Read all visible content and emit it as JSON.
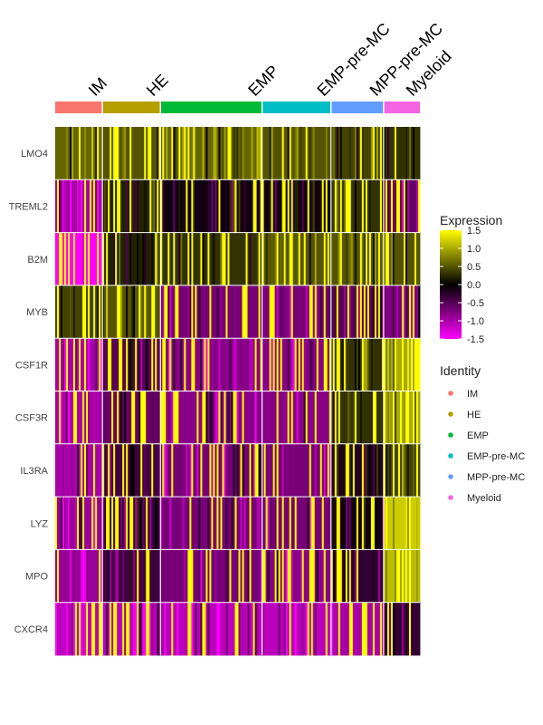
{
  "chart_data": {
    "type": "heatmap",
    "genes": [
      "LMO4",
      "TREML2",
      "B2M",
      "MYB",
      "CSF1R",
      "CSF3R",
      "IL3RA",
      "LYZ",
      "MPO",
      "CXCR4"
    ],
    "clusters": [
      {
        "name": "IM",
        "color": "#F8766D",
        "cells": 26
      },
      {
        "name": "HE",
        "color": "#B79F00",
        "cells": 32
      },
      {
        "name": "EMP",
        "color": "#00BA38",
        "cells": 56
      },
      {
        "name": "EMP-pre-MC",
        "color": "#00BFC4",
        "cells": 38
      },
      {
        "name": "MPP-pre-MC",
        "color": "#619CFF",
        "cells": 29
      },
      {
        "name": "Myeloid",
        "color": "#F564E3",
        "cells": 20
      }
    ],
    "color_scale": {
      "title": "Expression",
      "ticks": [
        "1.5",
        "1.0",
        "0.5",
        "0.0",
        "-0.5",
        "-1.0",
        "-1.5"
      ],
      "tick_values": [
        1.5,
        1.0,
        0.5,
        0.0,
        -0.5,
        -1.0,
        -1.5
      ],
      "range": [
        -1.5,
        1.5
      ],
      "low_color": "#FF00FF",
      "mid_color": "#000000",
      "high_color": "#FFFF00"
    },
    "legend_title": "Identity",
    "mean_expression": [
      [
        0.6,
        0.5,
        0.6,
        0.5,
        0.4,
        0.3
      ],
      [
        -1.0,
        0.2,
        -0.1,
        -0.1,
        0.3,
        -0.6
      ],
      [
        -1.5,
        0.2,
        0.3,
        0.5,
        0.5,
        0.5
      ],
      [
        0.4,
        0.5,
        -0.7,
        -0.7,
        -0.5,
        -0.7
      ],
      [
        -1.0,
        -0.5,
        -0.8,
        -0.8,
        0.3,
        1.0
      ],
      [
        -1.0,
        -0.6,
        -0.8,
        -0.8,
        0.3,
        1.0
      ],
      [
        -1.0,
        -0.4,
        -0.7,
        -0.7,
        -0.2,
        0.4
      ],
      [
        -0.9,
        -0.3,
        -0.7,
        -0.7,
        -0.1,
        1.2
      ],
      [
        -0.9,
        -0.4,
        -0.7,
        -0.8,
        -0.3,
        1.1
      ],
      [
        -1.1,
        -1.1,
        -1.1,
        -1.1,
        -1.0,
        -0.3
      ]
    ]
  }
}
